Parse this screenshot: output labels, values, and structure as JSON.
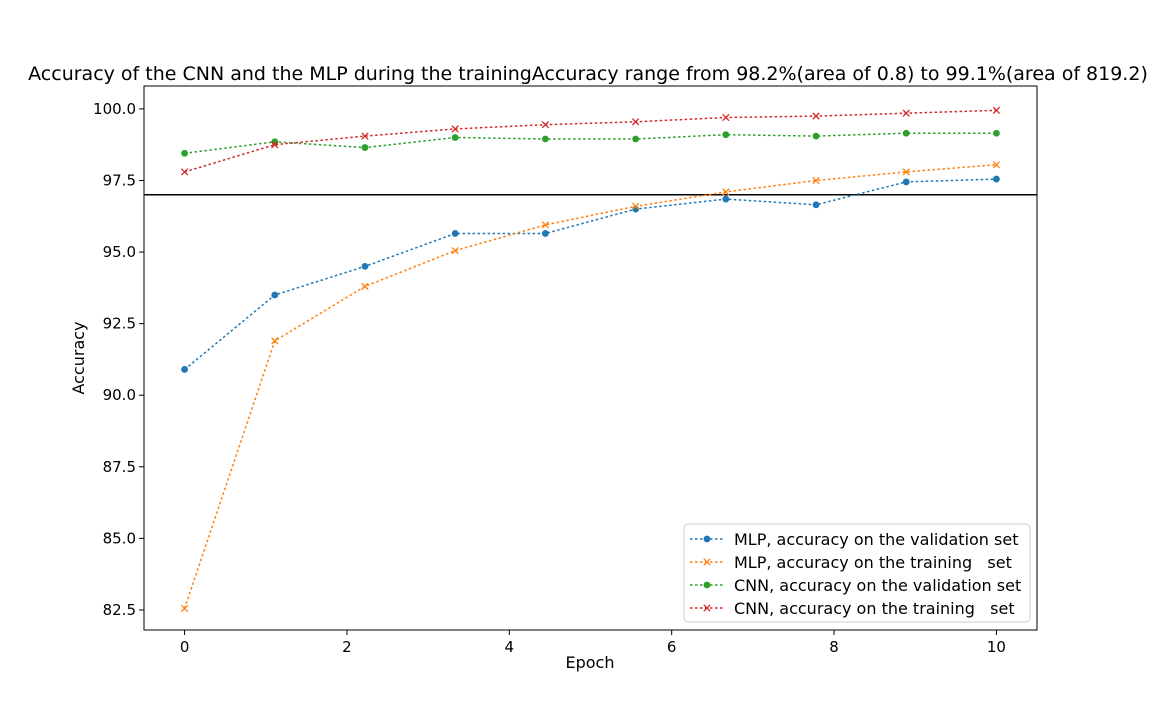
{
  "chart_data": {
    "type": "line",
    "title": "Accuracy of the CNN and the MLP during the trainingAccuracy range from 98.2%(area of 0.8) to 99.1%(area of 819.2)",
    "xlabel": "Epoch",
    "ylabel": "Accuracy",
    "xlim": [
      -0.5,
      10.5
    ],
    "ylim": [
      81.8,
      100.8
    ],
    "xticks": [
      0,
      2,
      4,
      6,
      8,
      10
    ],
    "xtick_labels": [
      "0",
      "2",
      "4",
      "6",
      "8",
      "10"
    ],
    "yticks": [
      82.5,
      85.0,
      87.5,
      90.0,
      92.5,
      95.0,
      97.5,
      100.0
    ],
    "ytick_labels": [
      "82.5",
      "85.0",
      "87.5",
      "90.0",
      "92.5",
      "95.0",
      "97.5",
      "100.0"
    ],
    "hline": 97.0,
    "grid": false,
    "legend_position": "lower-right",
    "x": [
      0,
      1.111,
      2.222,
      3.333,
      4.444,
      5.556,
      6.667,
      7.778,
      8.889,
      10
    ],
    "series": [
      {
        "name": "MLP, accuracy on the validation set",
        "color": "#1f77b4",
        "marker": "circle",
        "values": [
          90.9,
          93.5,
          94.5,
          95.65,
          95.65,
          96.5,
          96.85,
          96.65,
          97.45,
          97.55
        ]
      },
      {
        "name": "MLP, accuracy on the training   set",
        "color": "#ff7f0e",
        "marker": "x",
        "values": [
          82.55,
          91.9,
          93.8,
          95.05,
          95.95,
          96.6,
          97.1,
          97.5,
          97.8,
          98.05
        ]
      },
      {
        "name": "CNN, accuracy on the validation set",
        "color": "#2ca02c",
        "marker": "circle",
        "values": [
          98.45,
          98.85,
          98.65,
          99.0,
          98.95,
          98.95,
          99.1,
          99.05,
          99.15,
          99.15
        ]
      },
      {
        "name": "CNN, accuracy on the training   set",
        "color": "#d62728",
        "marker": "x",
        "values": [
          97.8,
          98.75,
          99.05,
          99.3,
          99.45,
          99.55,
          99.7,
          99.75,
          99.85,
          99.95
        ]
      }
    ]
  }
}
